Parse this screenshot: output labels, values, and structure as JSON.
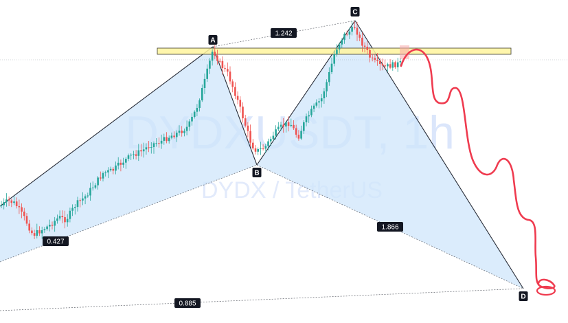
{
  "watermark": {
    "symbol": "DYDXUSDT, 1h",
    "description": "DYDX / TetherUS"
  },
  "colors": {
    "bull": "#26a69a",
    "bear": "#ef5350",
    "pattern_fill": "#cfe5fb",
    "pattern_line": "#2a2e39",
    "zone_fill": "#fff59d",
    "zone_border": "#3a3a2a",
    "projection": "#ef3b4f",
    "label_bg": "#131722"
  },
  "chart_data": {
    "type": "candlestick",
    "symbol": "DYDXUSDT",
    "timeframe": "1h",
    "pattern": {
      "points": [
        {
          "name": "X",
          "label": ""
        },
        {
          "name": "A",
          "label": "A"
        },
        {
          "name": "B",
          "label": "B"
        },
        {
          "name": "C",
          "label": "C"
        },
        {
          "name": "D",
          "label": "D"
        }
      ],
      "ratios": [
        {
          "legs": "X-B",
          "value": "0.427"
        },
        {
          "legs": "A-C",
          "value": "1.242"
        },
        {
          "legs": "B-D",
          "value": "1.866"
        },
        {
          "legs": "X-D",
          "value": "0.885"
        }
      ]
    },
    "resistance_zone": true,
    "projection_path": true
  }
}
